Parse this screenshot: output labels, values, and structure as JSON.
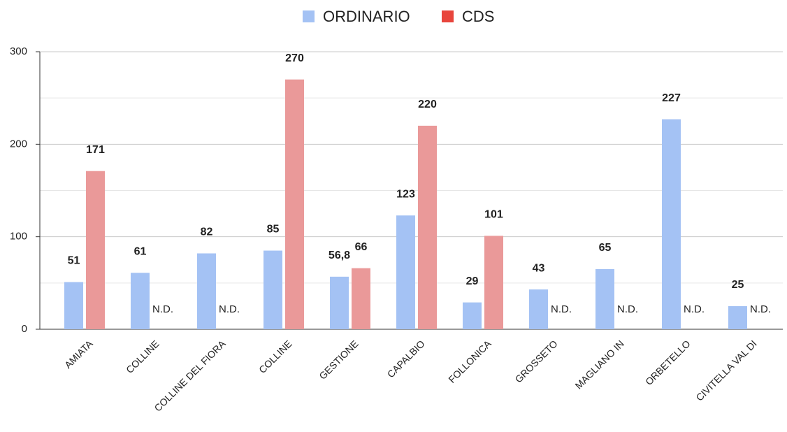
{
  "chart_data": {
    "type": "bar",
    "categories": [
      "AMIATA",
      "COLLINE",
      "COLLINE DEL FIORA",
      "COLLINE",
      "GESTIONE",
      "CAPALBIO",
      "FOLLONICA",
      "GROSSETO",
      "MAGLIANO IN",
      "ORBETELLO",
      "CIVITELLA VAL DI"
    ],
    "series": [
      {
        "name": "ORDINARIO",
        "color": "#a4c2f4",
        "legend_color": "#a4c2f4",
        "values": [
          51,
          61,
          82,
          85,
          56.8,
          123,
          29,
          43,
          65,
          227,
          25
        ],
        "value_labels": [
          "51",
          "61",
          "82",
          "85",
          "56,8",
          "123",
          "29",
          "43",
          "65",
          "227",
          "25"
        ]
      },
      {
        "name": "CDS",
        "color": "#ea9999",
        "legend_color": "#e8453c",
        "values": [
          171,
          null,
          null,
          270,
          66,
          220,
          101,
          null,
          null,
          null,
          null
        ],
        "value_labels": [
          "171",
          "N.D.",
          "N.D.",
          "270",
          "66",
          "220",
          "101",
          "N.D.",
          "N.D.",
          "N.D.",
          "N.D."
        ]
      }
    ],
    "ylim": [
      0,
      300
    ],
    "yticks": [
      0,
      100,
      200,
      300
    ],
    "minor_yticks": [
      50,
      150,
      250
    ],
    "grid": true,
    "legend": "top"
  }
}
